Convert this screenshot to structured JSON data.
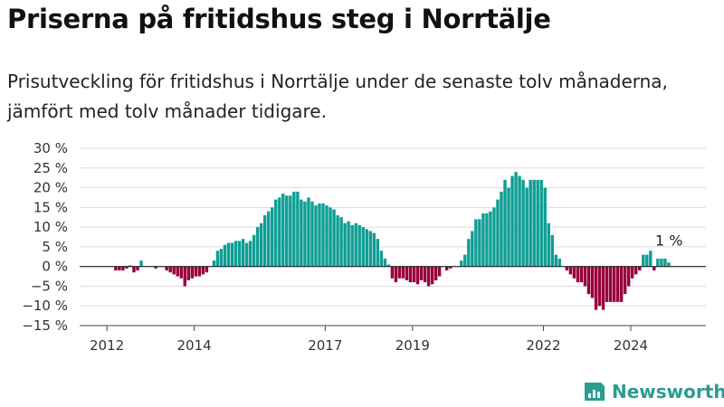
{
  "title": "Priserna på fritidshus steg i Norrtälje",
  "subtitle": "Prisutveckling för fritidshus i Norrtälje under de senaste tolv månaderna, jämfört med tolv månader tidigare.",
  "brand": {
    "name": "Newsworthy",
    "icon": "newsworthy-logo-icon"
  },
  "chart_data": {
    "type": "bar",
    "unit": "%",
    "y_ticks": [
      "30 %",
      "25 %",
      "20 %",
      "15 %",
      "10 %",
      "5 %",
      "0 %",
      "−5 %",
      "−10 %",
      "−15 %"
    ],
    "ylim": [
      -15,
      30
    ],
    "x_tick_labels": [
      {
        "label": "2012",
        "month": 2012.0
      },
      {
        "label": "2014",
        "month": 2014.0
      },
      {
        "label": "2017",
        "month": 2017.0
      },
      {
        "label": "2019",
        "month": 2019.0
      },
      {
        "label": "2022",
        "month": 2022.0
      },
      {
        "label": "2024",
        "month": 2024.0
      }
    ],
    "x_start": 2011.5,
    "colors": {
      "positive": "#0e9e94",
      "negative": "#98003d"
    },
    "annotation": {
      "text": "1 %",
      "index": 160
    },
    "grid": true,
    "values": [
      0,
      0,
      0,
      0,
      0,
      0,
      0,
      0,
      -1,
      -1,
      -1,
      -0.5,
      0.3,
      -1.5,
      -1,
      1.5,
      0,
      0,
      0,
      -0.5,
      0,
      0,
      -1,
      -1.5,
      -2,
      -2.5,
      -3,
      -5,
      -3.5,
      -3,
      -2.5,
      -2.5,
      -2,
      -1.5,
      0,
      1.5,
      4,
      4.5,
      5.5,
      6,
      6,
      6.5,
      6.5,
      7,
      6,
      6.5,
      8,
      10,
      11,
      13,
      14,
      15,
      17,
      17.5,
      18.5,
      18,
      18,
      19,
      19,
      17,
      16.5,
      17.5,
      16.5,
      15.5,
      16,
      16,
      15.5,
      15,
      14.5,
      13,
      12.5,
      11,
      11.5,
      10.5,
      11,
      10.5,
      10,
      9.5,
      9,
      8.5,
      7,
      4,
      2,
      0.5,
      -3,
      -4,
      -3,
      -3,
      -3.5,
      -4,
      -4,
      -4.5,
      -3.5,
      -4,
      -5,
      -4.5,
      -3.5,
      -2.5,
      0,
      -1,
      -0.5,
      0,
      0,
      1.5,
      3,
      7,
      9,
      12,
      12,
      13.5,
      13.5,
      14,
      15,
      17,
      19,
      22,
      20,
      23,
      24,
      23,
      22,
      20,
      22,
      22,
      22,
      22,
      20,
      11,
      8,
      3,
      2,
      0,
      -1,
      -2,
      -3,
      -4,
      -4,
      -5,
      -7,
      -8,
      -11,
      -10,
      -11,
      -9,
      -9,
      -9,
      -9,
      -9,
      -7,
      -5,
      -3,
      -2,
      -1,
      3,
      3,
      4,
      -1,
      2,
      2,
      2,
      1
    ]
  }
}
